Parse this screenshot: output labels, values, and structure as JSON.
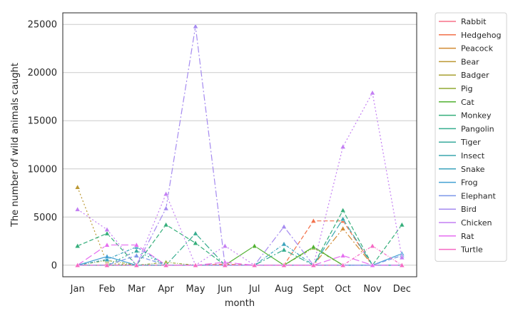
{
  "chart_data": {
    "type": "line",
    "title": "",
    "xlabel": "month",
    "ylabel": "The number of wild animals caught",
    "categories": [
      "Jan",
      "Feb",
      "Mar",
      "Apr",
      "May",
      "Jun",
      "Jul",
      "Aug",
      "Sept",
      "Oct",
      "Nov",
      "Dec"
    ],
    "yticks": [
      0,
      5000,
      10000,
      15000,
      20000,
      25000
    ],
    "ylim": [
      -1200,
      26200
    ],
    "grid": "horizontal",
    "legend_position": "outside-right",
    "marker": "triangle",
    "series": [
      {
        "name": "Rabbit",
        "color": "#f77189",
        "values": [
          0,
          0,
          0,
          0,
          0,
          0,
          0,
          0,
          0,
          0,
          0,
          0
        ]
      },
      {
        "name": "Hedgehog",
        "color": "#f2704a",
        "values": [
          0,
          0,
          0,
          0,
          0,
          100,
          0,
          0,
          4600,
          4600,
          0,
          0
        ]
      },
      {
        "name": "Peacock",
        "color": "#d18a32",
        "values": [
          0,
          0,
          0,
          0,
          0,
          0,
          0,
          0,
          0,
          3800,
          0,
          0
        ]
      },
      {
        "name": "Bear",
        "color": "#bb9832",
        "values": [
          8100,
          200,
          0,
          0,
          0,
          0,
          0,
          0,
          0,
          0,
          0,
          0
        ]
      },
      {
        "name": "Badger",
        "color": "#a79f31",
        "values": [
          0,
          0,
          0,
          0,
          0,
          0,
          0,
          0,
          0,
          0,
          0,
          0
        ]
      },
      {
        "name": "Pig",
        "color": "#90a832",
        "values": [
          0,
          500,
          0,
          300,
          0,
          0,
          0,
          0,
          1800,
          0,
          0,
          0
        ]
      },
      {
        "name": "Cat",
        "color": "#50b131",
        "values": [
          0,
          0,
          0,
          0,
          0,
          0,
          2000,
          0,
          1900,
          0,
          0,
          0
        ]
      },
      {
        "name": "Monkey",
        "color": "#34ae7a",
        "values": [
          2000,
          3300,
          0,
          4200,
          2300,
          0,
          0,
          0,
          0,
          5700,
          0,
          4200
        ]
      },
      {
        "name": "Pangolin",
        "color": "#36ad8f",
        "values": [
          0,
          0,
          0,
          0,
          3300,
          0,
          0,
          1600,
          0,
          0,
          0,
          0
        ]
      },
      {
        "name": "Tiger",
        "color": "#38aa9e",
        "values": [
          0,
          0,
          1500,
          0,
          0,
          0,
          0,
          0,
          0,
          0,
          0,
          0
        ]
      },
      {
        "name": "Insect",
        "color": "#3aa7ad",
        "values": [
          0,
          0,
          0,
          0,
          0,
          0,
          0,
          0,
          0,
          4800,
          0,
          0
        ]
      },
      {
        "name": "Snake",
        "color": "#3ca3bd",
        "values": [
          0,
          600,
          1900,
          0,
          0,
          0,
          0,
          2200,
          0,
          0,
          0,
          0
        ]
      },
      {
        "name": "Frog",
        "color": "#43a0d2",
        "values": [
          0,
          900,
          0,
          0,
          0,
          0,
          0,
          0,
          0,
          0,
          0,
          1200
        ]
      },
      {
        "name": "Elephant",
        "color": "#7a96e9",
        "values": [
          0,
          0,
          1000,
          0,
          0,
          0,
          0,
          0,
          0,
          0,
          0,
          1000
        ]
      },
      {
        "name": "Bird",
        "color": "#a58af0",
        "values": [
          0,
          0,
          0,
          5900,
          24800,
          0,
          0,
          4000,
          0,
          0,
          0,
          0
        ]
      },
      {
        "name": "Chicken",
        "color": "#c37ef3",
        "values": [
          5800,
          3700,
          0,
          7400,
          0,
          2000,
          0,
          0,
          0,
          12300,
          17900,
          800
        ]
      },
      {
        "name": "Rat",
        "color": "#e56df0",
        "values": [
          0,
          2100,
          2100,
          0,
          0,
          300,
          0,
          0,
          0,
          1000,
          0,
          0
        ]
      },
      {
        "name": "Turtle",
        "color": "#f569c3",
        "values": [
          0,
          0,
          0,
          0,
          0,
          0,
          0,
          0,
          0,
          0,
          2000,
          0
        ]
      }
    ]
  }
}
